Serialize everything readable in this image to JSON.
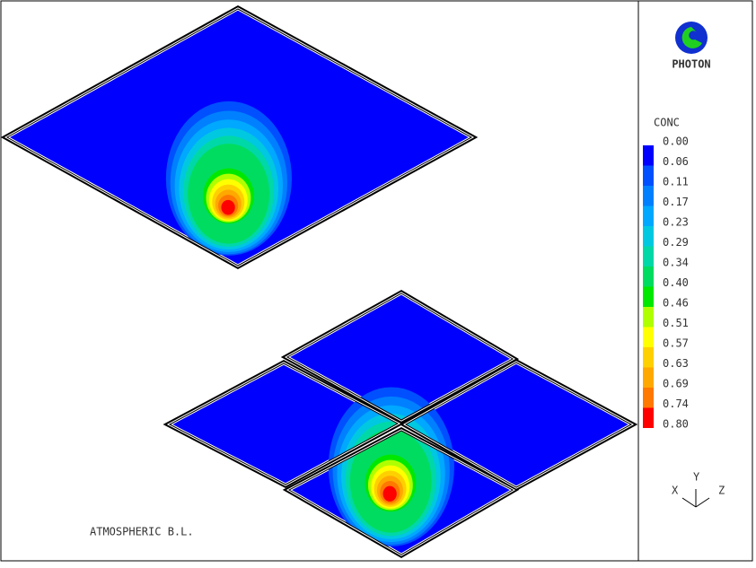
{
  "logo": {
    "text": "PHOTON"
  },
  "legend": {
    "title": "CONC",
    "labels": [
      "0.00",
      "0.06",
      "0.11",
      "0.17",
      "0.23",
      "0.29",
      "0.34",
      "0.40",
      "0.46",
      "0.51",
      "0.57",
      "0.63",
      "0.69",
      "0.74",
      "0.80"
    ],
    "colors": [
      "#0000ff",
      "#0050ff",
      "#0080ff",
      "#00a8ff",
      "#00c8e0",
      "#00d8a8",
      "#00dc60",
      "#00e800",
      "#b0ff00",
      "#ffff00",
      "#ffd000",
      "#ffa800",
      "#ff7800",
      "#ff0000"
    ]
  },
  "caption": "ATMOSPHERIC B.L.",
  "axes": {
    "x": "X",
    "y": "Y",
    "z": "Z"
  }
}
